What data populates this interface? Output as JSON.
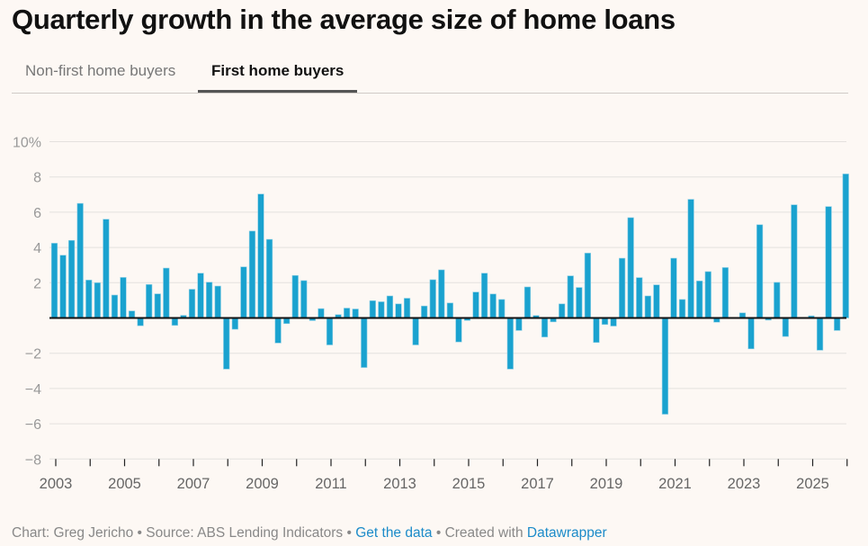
{
  "title": "Quarterly growth in the average size of home loans",
  "tabs": [
    {
      "label": "Non-first home buyers",
      "active": false
    },
    {
      "label": "First home buyers",
      "active": true
    }
  ],
  "footer": {
    "chart_by": "Chart: Greg Jericho",
    "sep1": " • ",
    "source": "Source: ABS Lending Indicators",
    "sep2": " • ",
    "get_data": "Get the data",
    "sep3": " • Created with ",
    "datawrapper": "Datawrapper"
  },
  "colors": {
    "bar": "#1aa2cf",
    "background": "#fdf8f4",
    "link": "#1c8bc9"
  },
  "chart_data": {
    "type": "bar",
    "title": "",
    "xlabel": "",
    "ylabel": "",
    "ylim": [
      -8,
      10
    ],
    "yticks": [
      10,
      8,
      6,
      4,
      2,
      0,
      -2,
      -4,
      -6,
      -8
    ],
    "ytick_labels": [
      "10%",
      "8",
      "6",
      "4",
      "2",
      "",
      "−2",
      "−4",
      "−6",
      "−8"
    ],
    "xtick_labels": [
      "2003",
      "2005",
      "2007",
      "2009",
      "2011",
      "2013",
      "2015",
      "2017",
      "2019",
      "2021",
      "2023",
      "2025"
    ],
    "grid": true,
    "start_quarter": "2003 Q1",
    "values": [
      4.24,
      3.56,
      4.4,
      6.5,
      2.15,
      2.0,
      5.6,
      1.3,
      2.3,
      0.4,
      -0.44,
      1.9,
      1.37,
      2.83,
      -0.42,
      0.15,
      1.63,
      2.54,
      2.03,
      1.81,
      -2.9,
      -0.64,
      2.9,
      4.93,
      7.03,
      4.46,
      -1.42,
      -0.32,
      2.41,
      2.12,
      -0.15,
      0.53,
      -1.53,
      0.19,
      0.56,
      0.51,
      -2.81,
      0.98,
      0.92,
      1.25,
      0.8,
      1.12,
      -1.53,
      0.68,
      2.17,
      2.73,
      0.85,
      -1.36,
      -0.14,
      1.47,
      2.54,
      1.36,
      1.05,
      -2.9,
      -0.71,
      1.76,
      0.14,
      -1.08,
      -0.22,
      0.8,
      2.39,
      1.73,
      3.68,
      -1.39,
      -0.37,
      -0.46,
      3.39,
      5.69,
      2.29,
      1.25,
      1.88,
      -5.46,
      3.39,
      1.05,
      6.73,
      2.1,
      2.63,
      -0.24,
      2.86,
      0,
      0.29,
      -1.75,
      5.29,
      -0.12,
      2.02,
      -1.05,
      6.42,
      0,
      0.12,
      -1.83,
      6.32,
      -0.71,
      8.17
    ]
  }
}
